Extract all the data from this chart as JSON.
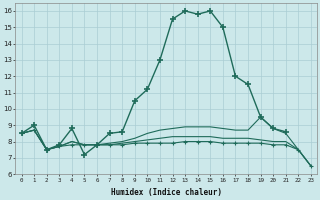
{
  "xlabel": "Humidex (Indice chaleur)",
  "bg_color": "#cce8ea",
  "grid_color": "#aacdd4",
  "line_color": "#1f6b5a",
  "ylim": [
    6,
    16.5
  ],
  "xlim": [
    -0.5,
    23.5
  ],
  "yticks": [
    6,
    7,
    8,
    9,
    10,
    11,
    12,
    13,
    14,
    15,
    16
  ],
  "xticks": [
    0,
    1,
    2,
    3,
    4,
    5,
    6,
    7,
    8,
    9,
    10,
    11,
    12,
    13,
    14,
    15,
    16,
    17,
    18,
    19,
    20,
    21,
    22,
    23
  ],
  "lines": [
    {
      "x": [
        0,
        1,
        2,
        3,
        4,
        5,
        6,
        7,
        8,
        9,
        10,
        11,
        12,
        13,
        14,
        15,
        16,
        17,
        18,
        19,
        20,
        21
      ],
      "y": [
        8.5,
        9.0,
        7.5,
        7.8,
        8.8,
        7.2,
        7.8,
        8.5,
        8.6,
        10.5,
        11.2,
        13.0,
        15.5,
        16.0,
        15.8,
        16.0,
        15.0,
        12.0,
        11.5,
        9.5,
        8.8,
        8.6
      ],
      "marker": "+",
      "ms": 4,
      "lw": 1.0,
      "mew": 1.2
    },
    {
      "x": [
        0,
        1,
        2,
        3,
        4,
        5,
        6,
        7,
        8,
        9,
        10,
        11,
        12,
        13,
        14,
        15,
        16,
        17,
        18,
        19,
        20,
        21,
        22,
        23
      ],
      "y": [
        8.5,
        8.7,
        7.5,
        7.7,
        7.8,
        7.8,
        7.8,
        7.8,
        7.8,
        7.9,
        7.9,
        7.9,
        7.9,
        8.0,
        8.0,
        8.0,
        7.9,
        7.9,
        7.9,
        7.9,
        7.8,
        7.8,
        7.5,
        6.5
      ],
      "marker": "+",
      "ms": 3,
      "lw": 0.8,
      "mew": 0.8
    },
    {
      "x": [
        0,
        1,
        2,
        3,
        4,
        5,
        6,
        7,
        8,
        9,
        10,
        11,
        12,
        13,
        14,
        15,
        16,
        17,
        18,
        19,
        20,
        21,
        22,
        23
      ],
      "y": [
        8.5,
        8.7,
        7.5,
        7.7,
        8.0,
        7.8,
        7.8,
        7.8,
        7.9,
        8.0,
        8.1,
        8.2,
        8.3,
        8.3,
        8.3,
        8.3,
        8.2,
        8.2,
        8.2,
        8.1,
        8.0,
        8.0,
        7.5,
        6.5
      ],
      "marker": null,
      "ms": 0,
      "lw": 0.8,
      "mew": 0.8
    },
    {
      "x": [
        0,
        1,
        2,
        3,
        4,
        5,
        6,
        7,
        8,
        9,
        10,
        11,
        12,
        13,
        14,
        15,
        16,
        17,
        18,
        19,
        20,
        21,
        22,
        23
      ],
      "y": [
        8.5,
        8.7,
        7.5,
        7.7,
        8.0,
        7.8,
        7.8,
        7.9,
        8.0,
        8.2,
        8.5,
        8.7,
        8.8,
        8.9,
        8.9,
        8.9,
        8.8,
        8.7,
        8.7,
        9.5,
        8.8,
        8.5,
        7.5,
        6.5
      ],
      "marker": null,
      "ms": 0,
      "lw": 0.8,
      "mew": 0.8
    }
  ]
}
